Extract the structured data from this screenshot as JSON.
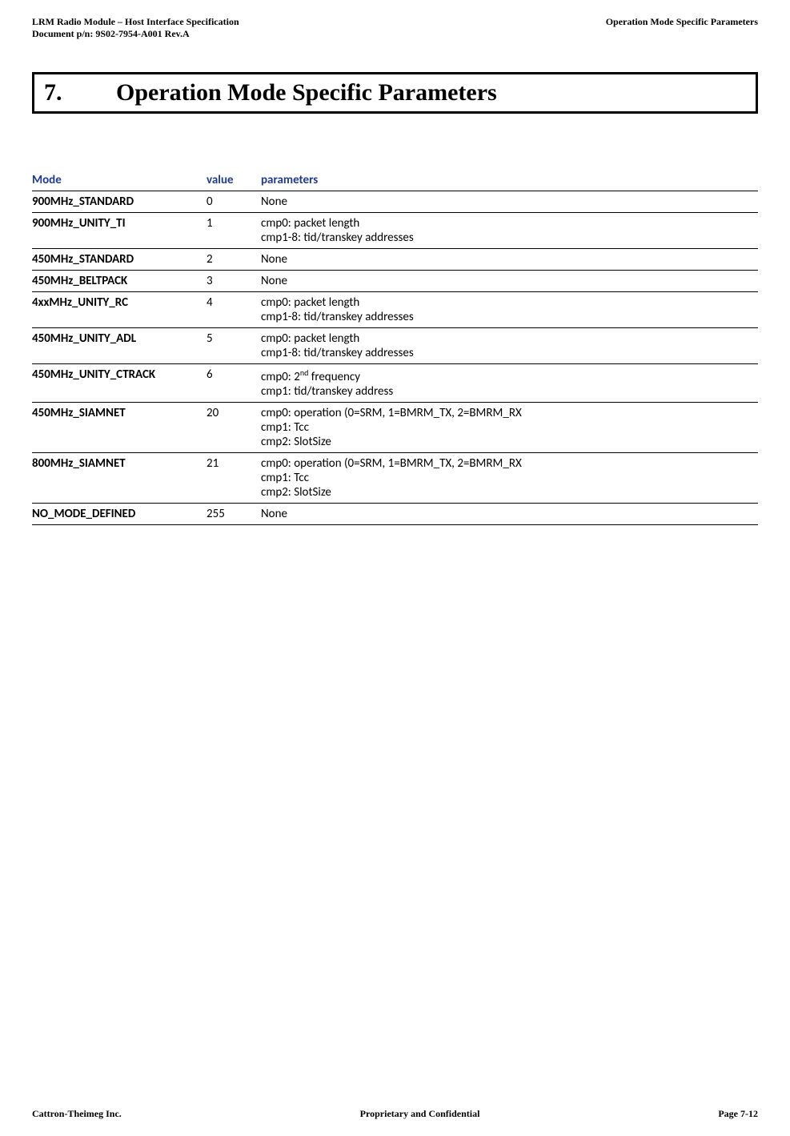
{
  "header": {
    "left_line1": "LRM Radio Module – Host Interface Specification",
    "left_line2": "Document p/n: 9S02-7954-A001 Rev.A",
    "right": "Operation Mode Specific Parameters"
  },
  "section": {
    "number": "7.",
    "title": "Operation Mode Specific Parameters"
  },
  "table": {
    "headers": {
      "mode": "Mode",
      "value": "value",
      "parameters": "parameters"
    },
    "colors": {
      "header_text": "#1f3a93"
    },
    "rows": [
      {
        "mode": "900MHz_STANDARD",
        "value": "0",
        "parameters": "None"
      },
      {
        "mode": "900MHz_UNITY_TI",
        "value": "1",
        "parameters": "cmp0: packet length\ncmp1-8: tid/transkey addresses"
      },
      {
        "mode": "450MHz_STANDARD",
        "value": "2",
        "parameters": "None"
      },
      {
        "mode": "450MHz_BELTPACK",
        "value": "3",
        "parameters": "None"
      },
      {
        "mode": "4xxMHz_UNITY_RC",
        "value": "4",
        "parameters": "cmp0: packet length\ncmp1-8: tid/transkey addresses"
      },
      {
        "mode": "450MHz_UNITY_ADL",
        "value": "5",
        "parameters": "cmp0: packet length\ncmp1-8: tid/transkey addresses"
      },
      {
        "mode": "450MHz_UNITY_CTRACK",
        "value": "6",
        "parameters": "cmp0: 2nd frequency\ncmp1: tid/transkey address",
        "superscript_target": "2nd",
        "superscript": "nd"
      },
      {
        "mode": "450MHz_SIAMNET",
        "value": "20",
        "parameters": "cmp0: operation (0=SRM, 1=BMRM_TX, 2=BMRM_RX\ncmp1: Tcc\ncmp2: SlotSize"
      },
      {
        "mode": "800MHz_SIAMNET",
        "value": "21",
        "parameters": "cmp0: operation (0=SRM, 1=BMRM_TX, 2=BMRM_RX\ncmp1: Tcc\ncmp2: SlotSize"
      },
      {
        "mode": "NO_MODE_DEFINED",
        "value": "255",
        "parameters": "None"
      }
    ]
  },
  "footer": {
    "left": "Cattron-Theimeg Inc.",
    "center": "Proprietary and Confidential",
    "right": "Page  7-12"
  }
}
